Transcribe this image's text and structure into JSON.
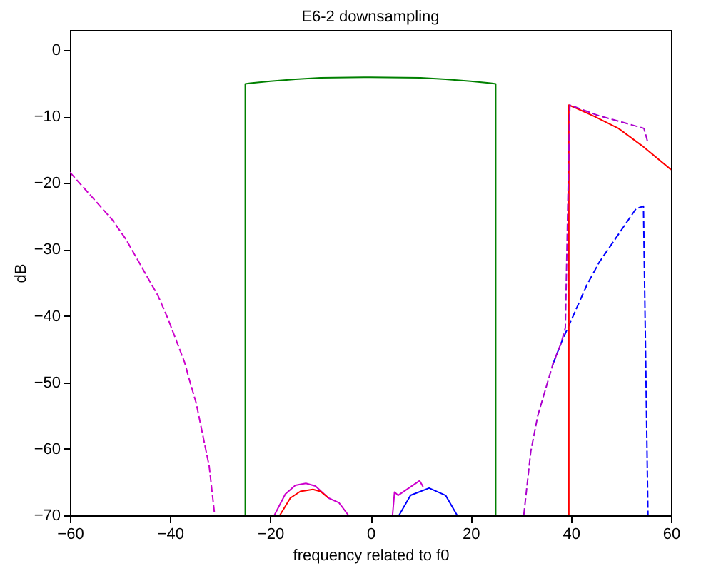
{
  "chart_data": {
    "type": "line",
    "title": "E6-2 downsampling",
    "xlabel": "frequency related to f0",
    "ylabel": "dB",
    "xlim": [
      -60,
      60
    ],
    "xticks": [
      -60,
      -40,
      -20,
      0,
      20,
      40,
      60
    ],
    "ylim": [
      -70,
      3
    ],
    "yticks": [
      -70,
      -60,
      -50,
      -40,
      -30,
      -20,
      -10,
      0
    ],
    "grid": false,
    "marker": "none",
    "series": [
      {
        "color": "#008000",
        "line_style": "solid",
        "x": [
          -25,
          -25,
          -24,
          -20,
          -15,
          -10,
          0,
          10,
          15,
          20,
          24,
          25,
          25
        ],
        "values": [
          -70,
          -5.1,
          -5.0,
          -4.7,
          -4.4,
          -4.2,
          -4.1,
          -4.2,
          -4.4,
          -4.7,
          -5.0,
          -5.1,
          -70
        ]
      },
      {
        "color": "#cc00cc",
        "line_style": "dashed",
        "x": [
          -60,
          -51.6,
          -48.8,
          -42.4,
          -40.5,
          -37.1,
          -36.2,
          -34.8,
          -32.2,
          -31.1
        ],
        "values": [
          -18.4,
          -25.5,
          -28.5,
          -37.0,
          -40.3,
          -47.0,
          -49.5,
          -53.1,
          -62.6,
          -70
        ]
      },
      {
        "color": "#cc00cc",
        "line_style": "solid",
        "x": [
          -19.2,
          -17,
          -15,
          -12.9,
          -11,
          -8.4,
          -6.3,
          -4.4
        ],
        "values": [
          -70,
          -66.8,
          -65.5,
          -65.2,
          -65.6,
          -67.4,
          -68.1,
          -70
        ]
      },
      {
        "color": "#ff0000",
        "line_style": "solid",
        "x": [
          -18.1,
          -16,
          -14,
          -11.5,
          -10,
          -8.4
        ],
        "values": [
          -70,
          -67.4,
          -66.4,
          -66.1,
          -66.4,
          -67.4
        ]
      },
      {
        "color": "#cc00cc",
        "line_style": "solid",
        "x": [
          4.4,
          4.8,
          5.5,
          9.8,
          10.5
        ],
        "values": [
          -70,
          -66.5,
          -67.0,
          -64.8,
          -65.7
        ]
      },
      {
        "color": "#0000ff",
        "line_style": "solid",
        "x": [
          5.7,
          8,
          11.7,
          15,
          17.3
        ],
        "values": [
          -70,
          -67,
          -65.9,
          -67,
          -70
        ]
      },
      {
        "color": "#0000ff",
        "line_style": "dashed",
        "x": [
          36.4,
          38.1,
          43.3,
          45.7,
          53.0,
          54.5,
          55.4
        ],
        "values": [
          -47.3,
          -44.0,
          -35.2,
          -31.9,
          -23.9,
          -23.5,
          -70
        ]
      },
      {
        "color": "#ff0000",
        "line_style": "solid",
        "x": [
          39.6,
          39.6,
          40.9,
          44.7,
          49.5,
          54.2,
          60
        ],
        "values": [
          -70,
          -8.3,
          -8.7,
          -10.0,
          -11.8,
          -14.4,
          -18.0
        ]
      },
      {
        "color": "#aa00cc",
        "line_style": "dashed",
        "x": [
          30.6,
          32.0,
          33.4,
          36.4,
          38.1,
          38.9,
          39.8,
          40.9,
          45.2,
          54.6,
          55.4
        ],
        "values": [
          -70,
          -60.4,
          -55.0,
          -47.3,
          -44.0,
          -41.8,
          -8.3,
          -8.6,
          -9.8,
          -11.8,
          -14.0
        ]
      }
    ]
  }
}
